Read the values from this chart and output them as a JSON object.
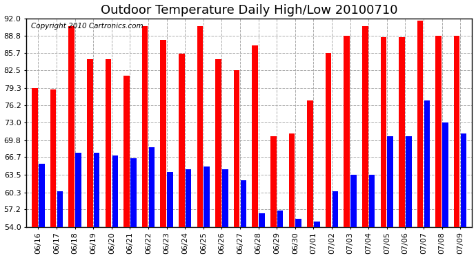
{
  "title": "Outdoor Temperature Daily High/Low 20100710",
  "copyright": "Copyright 2010 Cartronics.com",
  "dates": [
    "06/16",
    "06/17",
    "06/18",
    "06/19",
    "06/20",
    "06/21",
    "06/22",
    "06/23",
    "06/24",
    "06/25",
    "06/26",
    "06/27",
    "06/28",
    "06/29",
    "06/30",
    "07/01",
    "07/02",
    "07/03",
    "07/04",
    "07/05",
    "07/06",
    "07/07",
    "07/08",
    "07/09"
  ],
  "highs": [
    79.3,
    79.0,
    90.5,
    84.5,
    84.5,
    81.5,
    90.5,
    88.0,
    85.5,
    90.5,
    84.5,
    82.5,
    87.0,
    70.5,
    71.0,
    77.0,
    85.7,
    88.8,
    90.5,
    88.5,
    88.5,
    91.5,
    88.8,
    88.8
  ],
  "lows": [
    65.5,
    60.5,
    67.5,
    67.5,
    67.0,
    66.5,
    68.5,
    64.0,
    64.5,
    65.0,
    64.5,
    62.5,
    56.5,
    57.0,
    55.5,
    55.0,
    60.5,
    63.5,
    63.5,
    70.5,
    70.5,
    77.0,
    73.0,
    71.0
  ],
  "high_color": "#ff0000",
  "low_color": "#0000ff",
  "bg_color": "#ffffff",
  "grid_color": "#aaaaaa",
  "yticks": [
    54.0,
    57.2,
    60.3,
    63.5,
    66.7,
    69.8,
    73.0,
    76.2,
    79.3,
    82.5,
    85.7,
    88.8,
    92.0
  ],
  "ymin": 54.0,
  "ymax": 92.0,
  "title_fontsize": 13,
  "axis_fontsize": 8,
  "copyright_fontsize": 7.5,
  "bar_width": 0.32,
  "bar_gap": 0.05
}
